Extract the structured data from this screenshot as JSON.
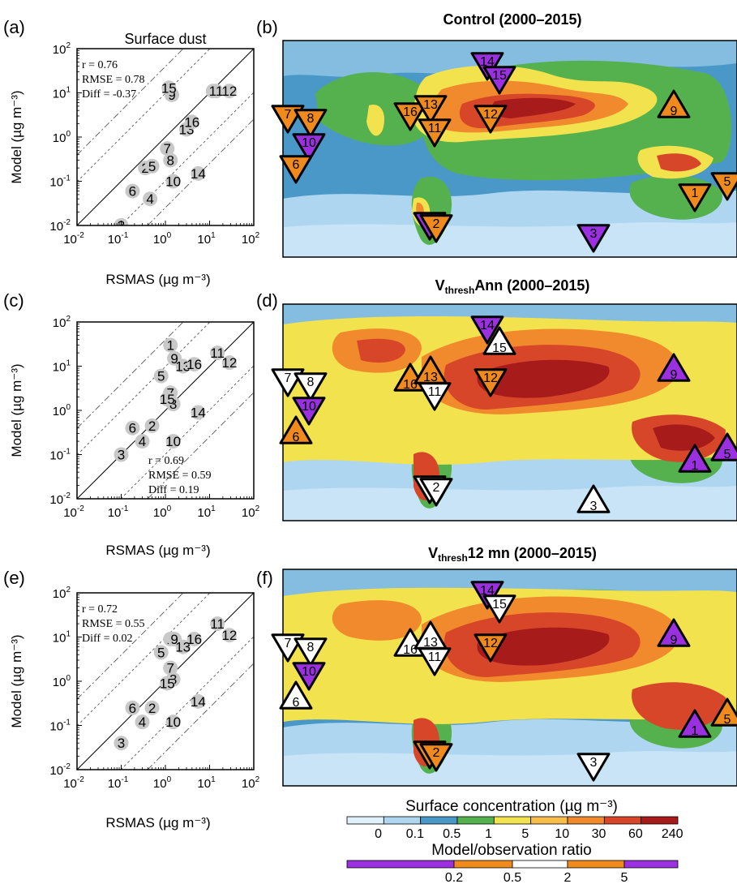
{
  "scatter_panels": [
    {
      "label": "(a)",
      "title": "Surface dust",
      "stats": [
        "r =  0.76",
        "RMSE = 0.78",
        "Diff = -0.37"
      ],
      "stats_pos": "upper-left"
    },
    {
      "label": "(c)",
      "title": "",
      "stats": [
        "r =  0.69",
        "RMSE = 0.59",
        "Diff =  0.19"
      ],
      "stats_pos": "lower-right"
    },
    {
      "label": "(e)",
      "title": "",
      "stats": [
        "r =  0.72",
        "RMSE = 0.55",
        "Diff =  0.02"
      ],
      "stats_pos": "upper-left"
    }
  ],
  "map_panels": [
    {
      "label": "(b)",
      "title": "Control (2000–2015)",
      "title_main": "",
      "title_sub": "",
      "title_rest": ""
    },
    {
      "label": "(d)",
      "title": "",
      "title_main": "V",
      "title_sub": "thresh",
      "title_rest": "Ann (2000–2015)"
    },
    {
      "label": "(f)",
      "title": "",
      "title_main": "V",
      "title_sub": "thresh",
      "title_rest": "12 mn (2000–2015)"
    }
  ],
  "axes": {
    "xlabel": "RSMAS (µg m⁻³)",
    "ylabel": "Model (µg m⁻³)",
    "tick_base": "10",
    "tick_exps": [
      "-2",
      "-1",
      "0",
      "1",
      "2"
    ],
    "scale": "log",
    "range": [
      0.01,
      100
    ]
  },
  "colorbars": {
    "conc_title": "Surface concentration (µg m⁻³)",
    "conc_ticks": [
      "0",
      "0.1",
      "0.5",
      "1",
      "5",
      "10",
      "30",
      "60",
      "240"
    ],
    "conc_colors": [
      "#dff0fa",
      "#aed6f1",
      "#4a98c8",
      "#55b14e",
      "#f2e24e",
      "#f6bd4a",
      "#f08a2d",
      "#d8462a",
      "#a71b1b"
    ],
    "ratio_title": "Model/observation ratio",
    "ratio_ticks": [
      "0.2",
      "0.5",
      "2",
      "5"
    ],
    "ratio_colors": [
      "#9b30e0",
      "#f08a1c",
      "#ffffff",
      "#f08a1c",
      "#9b30e0"
    ]
  },
  "colors": {
    "gray_marker": "#c8c8c8",
    "purple": "#9b30e0",
    "orange": "#f08a1c",
    "white": "#ffffff"
  },
  "chart_data": [
    {
      "type": "scatter",
      "panel": "(a)",
      "title": "Surface dust",
      "xlabel": "RSMAS (µg m⁻³)",
      "ylabel": "Model (µg m⁻³)",
      "xscale": "log",
      "yscale": "log",
      "xlim": [
        0.01,
        100
      ],
      "ylim": [
        0.01,
        100
      ],
      "points": [
        {
          "id": "1",
          "x": 12,
          "y": 11
        },
        {
          "id": "2",
          "x": 0.35,
          "y": 0.2
        },
        {
          "id": "3",
          "x": 0.1,
          "y": 0.01
        },
        {
          "id": "4",
          "x": 0.45,
          "y": 0.04
        },
        {
          "id": "5",
          "x": 0.5,
          "y": 0.22
        },
        {
          "id": "6",
          "x": 0.18,
          "y": 0.06
        },
        {
          "id": "7",
          "x": 1.1,
          "y": 0.55
        },
        {
          "id": "8",
          "x": 1.3,
          "y": 0.3
        },
        {
          "id": "9",
          "x": 1.4,
          "y": 9
        },
        {
          "id": "10",
          "x": 1.5,
          "y": 0.1
        },
        {
          "id": "11",
          "x": 14,
          "y": 11
        },
        {
          "id": "12",
          "x": 28,
          "y": 11
        },
        {
          "id": "13",
          "x": 3,
          "y": 1.5
        },
        {
          "id": "14",
          "x": 5.5,
          "y": 0.15
        },
        {
          "id": "15",
          "x": 1.2,
          "y": 13
        },
        {
          "id": "16",
          "x": 4,
          "y": 2.2
        }
      ]
    },
    {
      "type": "scatter",
      "panel": "(c)",
      "xlabel": "RSMAS (µg m⁻³)",
      "ylabel": "Model (µg m⁻³)",
      "xscale": "log",
      "yscale": "log",
      "xlim": [
        0.01,
        100
      ],
      "ylim": [
        0.01,
        100
      ],
      "points": [
        {
          "id": "1",
          "x": 1.3,
          "y": 30
        },
        {
          "id": "2",
          "x": 0.5,
          "y": 0.45
        },
        {
          "id": "3",
          "x": 0.1,
          "y": 0.1
        },
        {
          "id": "4",
          "x": 0.3,
          "y": 0.2
        },
        {
          "id": "5",
          "x": 0.8,
          "y": 6
        },
        {
          "id": "6",
          "x": 0.18,
          "y": 0.4
        },
        {
          "id": "7",
          "x": 1.3,
          "y": 2.5
        },
        {
          "id": "8",
          "x": 1.5,
          "y": 1.4
        },
        {
          "id": "9",
          "x": 1.6,
          "y": 15
        },
        {
          "id": "10",
          "x": 1.5,
          "y": 0.2
        },
        {
          "id": "11",
          "x": 15,
          "y": 20
        },
        {
          "id": "12",
          "x": 28,
          "y": 12
        },
        {
          "id": "13",
          "x": 2.5,
          "y": 10
        },
        {
          "id": "14",
          "x": 5.5,
          "y": 0.9
        },
        {
          "id": "15",
          "x": 1.1,
          "y": 1.8
        },
        {
          "id": "16",
          "x": 4.5,
          "y": 11
        }
      ]
    },
    {
      "type": "scatter",
      "panel": "(e)",
      "xlabel": "RSMAS (µg m⁻³)",
      "ylabel": "Model (µg m⁻³)",
      "xscale": "log",
      "yscale": "log",
      "xlim": [
        0.01,
        100
      ],
      "ylim": [
        0.01,
        100
      ],
      "points": [
        {
          "id": "1",
          "x": 1.3,
          "y": 9
        },
        {
          "id": "2",
          "x": 0.5,
          "y": 0.25
        },
        {
          "id": "3",
          "x": 0.1,
          "y": 0.04
        },
        {
          "id": "4",
          "x": 0.3,
          "y": 0.12
        },
        {
          "id": "5",
          "x": 0.8,
          "y": 4.5
        },
        {
          "id": "6",
          "x": 0.18,
          "y": 0.25
        },
        {
          "id": "7",
          "x": 1.3,
          "y": 2
        },
        {
          "id": "8",
          "x": 1.5,
          "y": 1.1
        },
        {
          "id": "9",
          "x": 1.6,
          "y": 9
        },
        {
          "id": "10",
          "x": 1.5,
          "y": 0.12
        },
        {
          "id": "11",
          "x": 15,
          "y": 20
        },
        {
          "id": "12",
          "x": 28,
          "y": 11
        },
        {
          "id": "13",
          "x": 2.5,
          "y": 6
        },
        {
          "id": "14",
          "x": 5.5,
          "y": 0.35
        },
        {
          "id": "15",
          "x": 1.1,
          "y": 0.9
        },
        {
          "id": "16",
          "x": 4.5,
          "y": 9
        }
      ]
    },
    {
      "type": "heatmap",
      "panel": "(b)",
      "title": "Control (2000–2015)",
      "colorbar": "Surface concentration (µg m⁻³)",
      "markers": [
        {
          "id": "7",
          "state": "orange",
          "dir": "down"
        },
        {
          "id": "8",
          "state": "orange",
          "dir": "down"
        },
        {
          "id": "10",
          "state": "purple",
          "dir": "down"
        },
        {
          "id": "6",
          "state": "orange",
          "dir": "down"
        },
        {
          "id": "16",
          "state": "orange",
          "dir": "down"
        },
        {
          "id": "13",
          "state": "orange",
          "dir": "down"
        },
        {
          "id": "11",
          "state": "orange",
          "dir": "down"
        },
        {
          "id": "12",
          "state": "orange",
          "dir": "down"
        },
        {
          "id": "14",
          "state": "purple",
          "dir": "down"
        },
        {
          "id": "15",
          "state": "purple",
          "dir": "down"
        },
        {
          "id": "9",
          "state": "orange",
          "dir": "up"
        },
        {
          "id": "1",
          "state": "orange",
          "dir": "down"
        },
        {
          "id": "5",
          "state": "orange",
          "dir": "down"
        },
        {
          "id": "4",
          "state": "purple",
          "dir": "down"
        },
        {
          "id": "2",
          "state": "orange",
          "dir": "down"
        },
        {
          "id": "3",
          "state": "purple",
          "dir": "down"
        }
      ]
    },
    {
      "type": "heatmap",
      "panel": "(d)",
      "title": "VthreshAnn (2000–2015)",
      "colorbar": "Surface concentration (µg m⁻³)",
      "markers": [
        {
          "id": "7",
          "state": "white",
          "dir": "down"
        },
        {
          "id": "8",
          "state": "white",
          "dir": "down"
        },
        {
          "id": "10",
          "state": "purple",
          "dir": "down"
        },
        {
          "id": "6",
          "state": "orange",
          "dir": "up"
        },
        {
          "id": "16",
          "state": "orange",
          "dir": "up"
        },
        {
          "id": "13",
          "state": "orange",
          "dir": "up"
        },
        {
          "id": "11",
          "state": "white",
          "dir": "down"
        },
        {
          "id": "12",
          "state": "orange",
          "dir": "down"
        },
        {
          "id": "14",
          "state": "purple",
          "dir": "down"
        },
        {
          "id": "15",
          "state": "white",
          "dir": "up"
        },
        {
          "id": "9",
          "state": "purple",
          "dir": "up"
        },
        {
          "id": "1",
          "state": "purple",
          "dir": "up"
        },
        {
          "id": "5",
          "state": "purple",
          "dir": "up"
        },
        {
          "id": "4",
          "state": "white",
          "dir": "down"
        },
        {
          "id": "2",
          "state": "white",
          "dir": "down"
        },
        {
          "id": "3",
          "state": "white",
          "dir": "up"
        }
      ]
    },
    {
      "type": "heatmap",
      "panel": "(f)",
      "title": "Vthresh12 mn (2000–2015)",
      "colorbar": "Surface concentration (µg m⁻³)",
      "markers": [
        {
          "id": "7",
          "state": "white",
          "dir": "down"
        },
        {
          "id": "8",
          "state": "white",
          "dir": "down"
        },
        {
          "id": "10",
          "state": "purple",
          "dir": "down"
        },
        {
          "id": "6",
          "state": "white",
          "dir": "up"
        },
        {
          "id": "16",
          "state": "white",
          "dir": "up"
        },
        {
          "id": "13",
          "state": "white",
          "dir": "up"
        },
        {
          "id": "11",
          "state": "white",
          "dir": "down"
        },
        {
          "id": "12",
          "state": "orange",
          "dir": "down"
        },
        {
          "id": "14",
          "state": "purple",
          "dir": "down"
        },
        {
          "id": "15",
          "state": "white",
          "dir": "down"
        },
        {
          "id": "9",
          "state": "purple",
          "dir": "up"
        },
        {
          "id": "1",
          "state": "purple",
          "dir": "up"
        },
        {
          "id": "5",
          "state": "orange",
          "dir": "up"
        },
        {
          "id": "4",
          "state": "orange",
          "dir": "down"
        },
        {
          "id": "2",
          "state": "orange",
          "dir": "down"
        },
        {
          "id": "3",
          "state": "white",
          "dir": "down"
        }
      ]
    }
  ]
}
